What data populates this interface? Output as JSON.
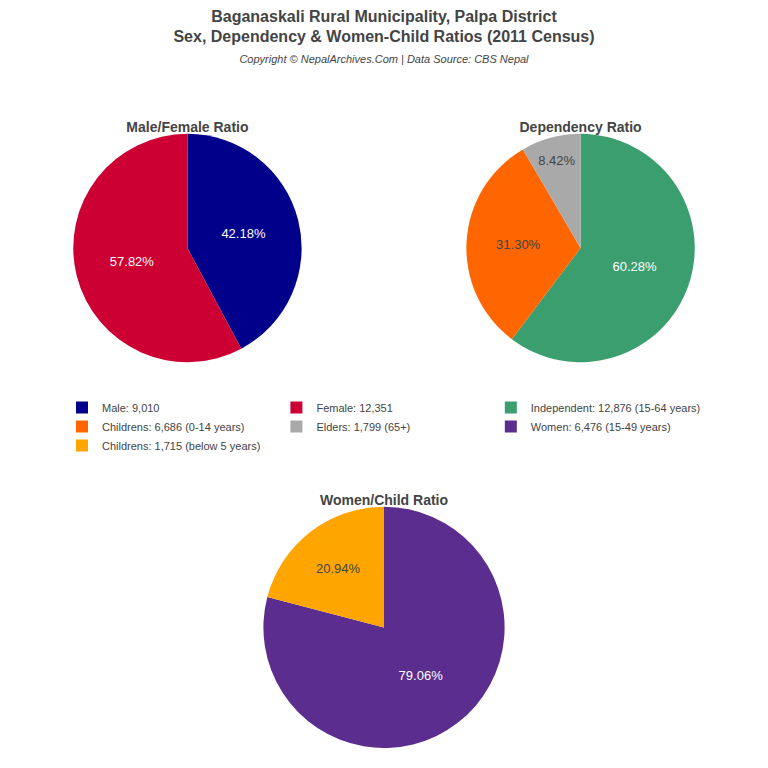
{
  "title": "Baganaskali Rural Municipality, Palpa District\nSex, Dependency & Women-Child Ratios (2011 Census)",
  "subtitle": "Copyright © NepalArchives.Com | Data Source: CBS Nepal",
  "legend": "center",
  "chart_data": [
    {
      "type": "pie",
      "title": "Male/Female Ratio",
      "categories": [
        "Male: 9,010",
        "Female: 12,351"
      ],
      "values": [
        42.18,
        57.82
      ],
      "value_labels": [
        "42.18%",
        "57.82%"
      ],
      "colors": [
        "#00008B",
        "#CC0033"
      ],
      "data_labels": true
    },
    {
      "type": "pie",
      "title": "Dependency Ratio",
      "categories": [
        "Independent: 12,876 (15-64 years)",
        "Childrens: 6,686 (0-14 years)",
        "Elders: 1,799 (65+)"
      ],
      "values": [
        60.28,
        31.3,
        8.42
      ],
      "value_labels": [
        "60.28%",
        "31.30%",
        "8.42%"
      ],
      "colors": [
        "#3B9E6E",
        "#FF6600",
        "#A9A9A9"
      ],
      "data_labels": true
    },
    {
      "type": "pie",
      "title": "Women/Child Ratio",
      "categories": [
        "Women: 6,476 (15-49 years)",
        "Childrens: 1,715 (below 5 years)"
      ],
      "values": [
        79.06,
        20.94
      ],
      "value_labels": [
        "79.06%",
        "20.94%"
      ],
      "colors": [
        "#5B2D8E",
        "#FFA500"
      ],
      "data_labels": true
    }
  ]
}
